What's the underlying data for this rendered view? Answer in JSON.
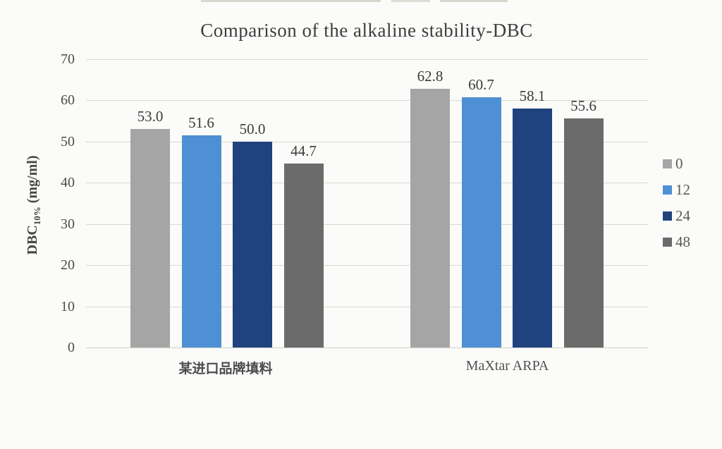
{
  "chart_data": {
    "type": "bar",
    "title": "Comparison of the alkaline stability-DBC",
    "ylabel": {
      "prefix": "DBC",
      "subscript": "10%",
      "suffix": " (mg/ml)"
    },
    "xlabel": "",
    "categories": [
      "某进口品牌填料",
      "MaXtar ARPA"
    ],
    "series": [
      {
        "name": "0",
        "color": "#a5a5a5",
        "values": [
          53.0,
          62.8
        ]
      },
      {
        "name": "12",
        "color": "#4f90d5",
        "values": [
          51.6,
          60.7
        ]
      },
      {
        "name": "24",
        "color": "#20427f",
        "values": [
          50.0,
          58.1
        ]
      },
      {
        "name": "48",
        "color": "#6b6b6b",
        "values": [
          44.7,
          55.6
        ]
      }
    ],
    "ylim": [
      0,
      70
    ],
    "yticks": [
      0,
      10,
      20,
      30,
      40,
      50,
      60,
      70
    ],
    "grid": "horizontal",
    "legend_position": "right",
    "legend": [
      "0",
      "12",
      "24",
      "48"
    ],
    "value_label_decimals": 1
  },
  "page": {
    "background": "#fbfbf9"
  }
}
